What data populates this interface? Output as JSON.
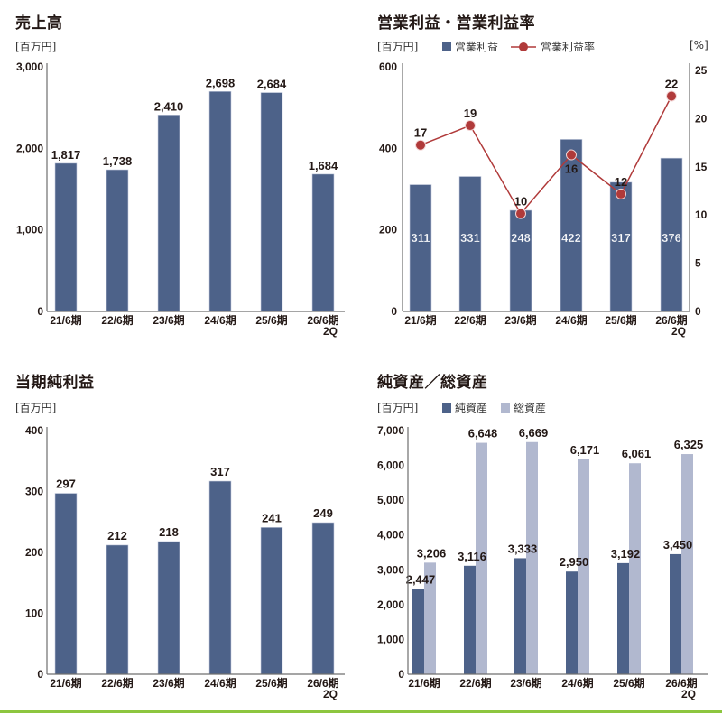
{
  "colors": {
    "bar_primary": "#4d6289",
    "bar_secondary": "#b1b8cf",
    "line_rate": "#b03a3a",
    "axis": "#6f6f6f",
    "text": "#231815",
    "bottom_rule": "#8dc63f"
  },
  "charts": {
    "sales": {
      "title": "売上高",
      "unit": "[百万円]"
    },
    "operating": {
      "title": "営業利益・営業利益率",
      "unit": "[百万円]",
      "legend_bar": "営業利益",
      "legend_line": "営業利益率",
      "unit_right": "[%]"
    },
    "net_income": {
      "title": "当期純利益",
      "unit": "[百万円]"
    },
    "assets": {
      "title": "純資産／総資産",
      "unit": "[百万円]",
      "legend_net": "純資産",
      "legend_total": "総資産"
    }
  },
  "chart_data": [
    {
      "type": "bar",
      "title": "売上高",
      "ylabel": "[百万円]",
      "categories": [
        "21/6期",
        "22/6期",
        "23/6期",
        "24/6期",
        "25/6期",
        "26/6期 2Q"
      ],
      "values": [
        1817,
        1738,
        2410,
        2698,
        2684,
        1684
      ],
      "value_labels": [
        "1,817",
        "1,738",
        "2,410",
        "2,698",
        "2,684",
        "1,684"
      ],
      "yticks": [
        "0",
        "1,000",
        "2,000",
        "3,000"
      ],
      "ylim": [
        0,
        3000
      ],
      "grid": false
    },
    {
      "type": "bar+line",
      "title": "営業利益・営業利益率",
      "ylabel": "[百万円]",
      "y2label": "[%]",
      "categories": [
        "21/6期",
        "22/6期",
        "23/6期",
        "24/6期",
        "25/6期",
        "26/6期 2Q"
      ],
      "series": [
        {
          "name": "営業利益",
          "type": "bar",
          "axis": "left",
          "values": [
            311,
            331,
            248,
            422,
            317,
            376
          ]
        },
        {
          "name": "営業利益率",
          "type": "line",
          "axis": "right",
          "values": [
            17,
            19,
            10,
            16,
            12,
            22
          ]
        }
      ],
      "yticks": [
        "0",
        "200",
        "400",
        "600"
      ],
      "ylim": [
        0,
        600
      ],
      "y2ticks": [
        "0",
        "5",
        "10",
        "15",
        "20",
        "25"
      ],
      "y2lim": [
        0,
        25
      ],
      "legend_position": "top",
      "grid": false
    },
    {
      "type": "bar",
      "title": "当期純利益",
      "ylabel": "[百万円]",
      "categories": [
        "21/6期",
        "22/6期",
        "23/6期",
        "24/6期",
        "25/6期",
        "26/6期 2Q"
      ],
      "values": [
        297,
        212,
        218,
        317,
        241,
        249
      ],
      "value_labels": [
        "297",
        "212",
        "218",
        "317",
        "241",
        "249"
      ],
      "yticks": [
        "0",
        "100",
        "200",
        "300",
        "400"
      ],
      "ylim": [
        0,
        400
      ],
      "grid": false
    },
    {
      "type": "bar",
      "title": "純資産／総資産",
      "ylabel": "[百万円]",
      "categories": [
        "21/6期",
        "22/6期",
        "23/6期",
        "24/6期",
        "25/6期",
        "26/6期 2Q"
      ],
      "series": [
        {
          "name": "純資産",
          "values": [
            2447,
            3116,
            3333,
            2950,
            3192,
            3450
          ],
          "labels": [
            "2,447",
            "3,116",
            "3,333",
            "2,950",
            "3,192",
            "3,450"
          ]
        },
        {
          "name": "総資産",
          "values": [
            3206,
            6648,
            6669,
            6171,
            6061,
            6325
          ],
          "labels": [
            "3,206",
            "6,648",
            "6,669",
            "6,171",
            "6,061",
            "6,325"
          ]
        }
      ],
      "yticks": [
        "0",
        "1,000",
        "2,000",
        "3,000",
        "4,000",
        "5,000",
        "6,000",
        "7,000"
      ],
      "ylim": [
        0,
        7000
      ],
      "legend_position": "top",
      "grid": false
    }
  ]
}
